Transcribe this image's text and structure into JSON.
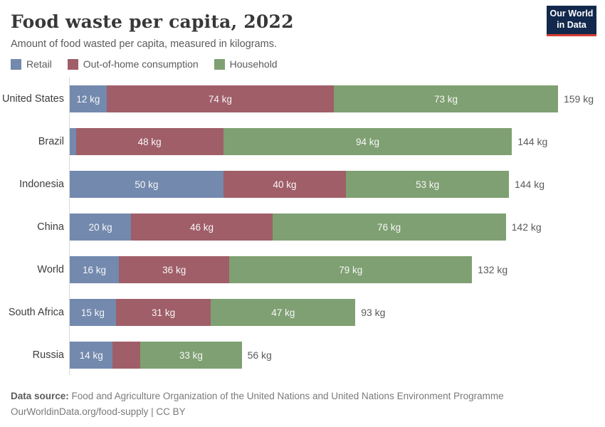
{
  "header": {
    "title": "Food waste per capita, 2022",
    "subtitle": "Amount of food wasted per capita, measured in kilograms.",
    "logo": {
      "line1": "Our World",
      "line2": "in Data"
    }
  },
  "colors": {
    "retail_blue": "#7389ae",
    "out_of_home_red": "#a05e68",
    "household_green": "#7fa072",
    "axis_gray": "#dadada",
    "logo_navy": "#12294d",
    "logo_red": "#d73c32"
  },
  "chart_data": {
    "type": "bar",
    "orientation": "horizontal",
    "stacked": true,
    "title": "Food waste per capita, 2022",
    "unit": "kg",
    "x_max": 159,
    "grid": false,
    "legend_position": "top",
    "categories": [
      "United States",
      "Brazil",
      "Indonesia",
      "China",
      "World",
      "South Africa",
      "Russia"
    ],
    "series": [
      {
        "name": "Retail",
        "color": "#7389ae",
        "values": [
          12,
          2,
          50,
          20,
          16,
          15,
          14
        ],
        "labels": [
          "12 kg",
          "",
          "50 kg",
          "20 kg",
          "16 kg",
          "15 kg",
          "14 kg"
        ]
      },
      {
        "name": "Out-of-home consumption",
        "color": "#a05e68",
        "values": [
          74,
          48,
          40,
          46,
          36,
          31,
          9
        ],
        "labels": [
          "74 kg",
          "48 kg",
          "40 kg",
          "46 kg",
          "36 kg",
          "31 kg",
          ""
        ]
      },
      {
        "name": "Household",
        "color": "#7fa072",
        "values": [
          73,
          94,
          53,
          76,
          79,
          47,
          33
        ],
        "labels": [
          "73 kg",
          "94 kg",
          "53 kg",
          "76 kg",
          "79 kg",
          "47 kg",
          "33 kg"
        ]
      }
    ],
    "totals": [
      "159 kg",
      "144 kg",
      "144 kg",
      "142 kg",
      "132 kg",
      "93 kg",
      "56 kg"
    ]
  },
  "footer": {
    "source_label": "Data source:",
    "source_text": "Food and Agriculture Organization of the United Nations and United Nations Environment Programme",
    "link_line": "OurWorldinData.org/food-supply | CC BY"
  }
}
